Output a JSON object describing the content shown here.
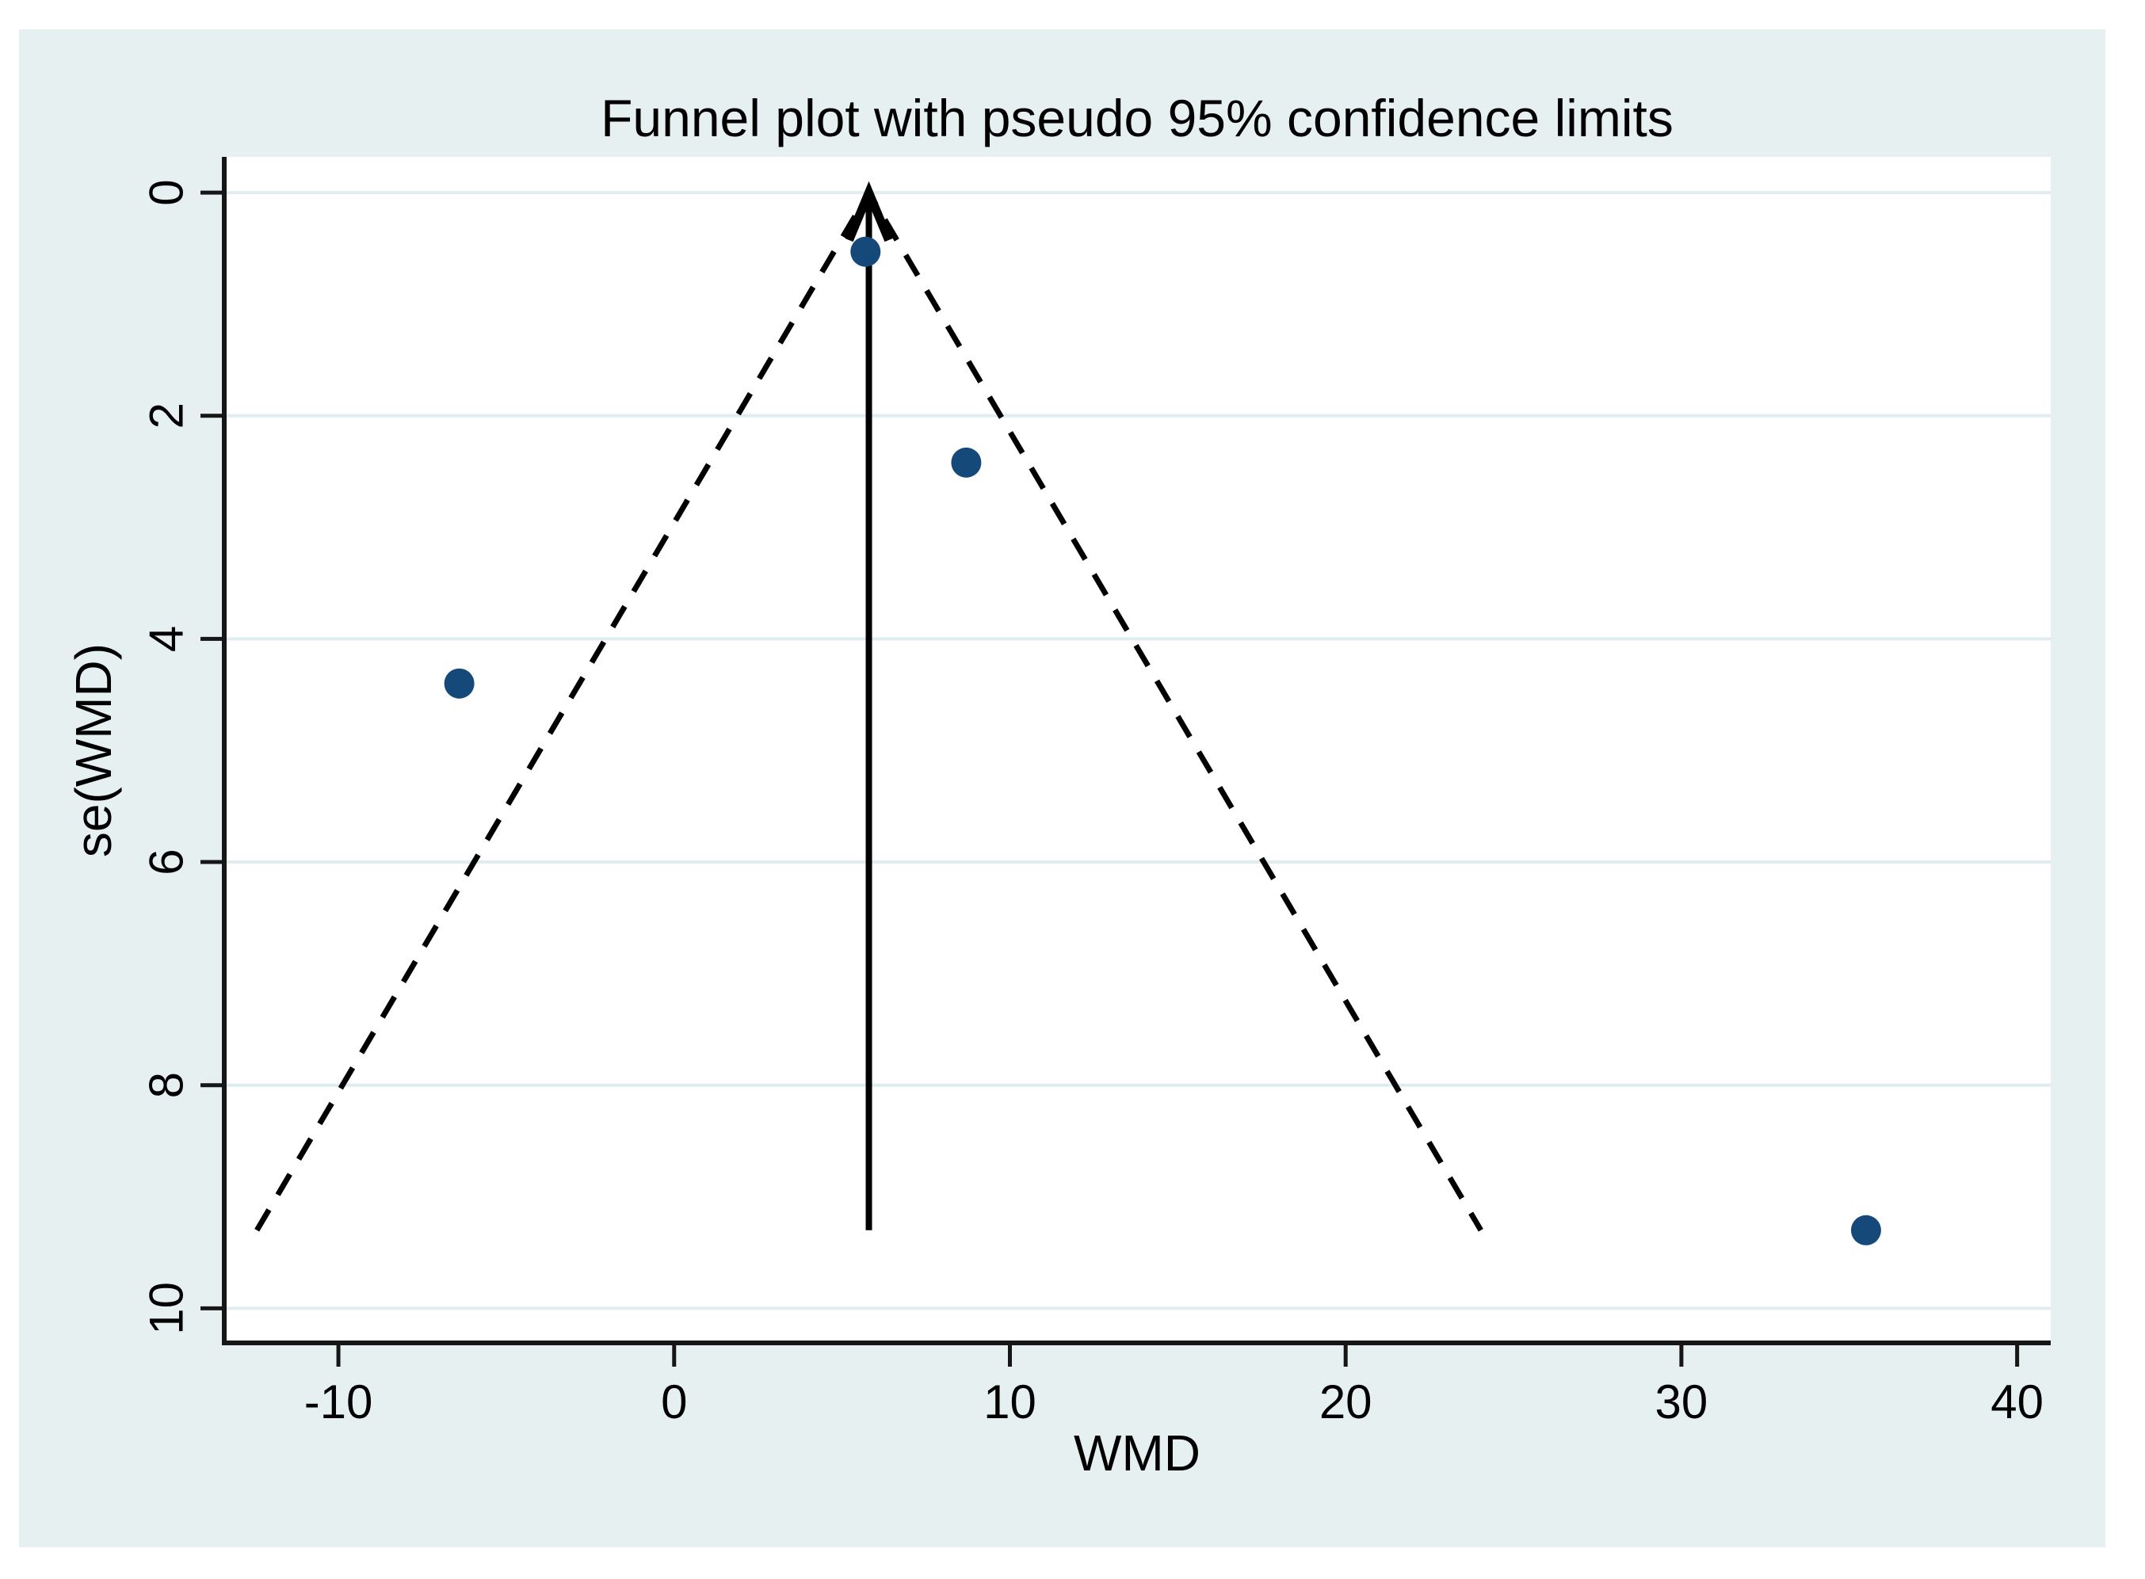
{
  "chart_data": {
    "type": "scatter",
    "title": "Funnel plot with pseudo 95% confidence limits",
    "xlabel": "WMD",
    "ylabel": "se(WMD)",
    "x_ticks": [
      -10,
      0,
      10,
      20,
      30,
      40
    ],
    "y_ticks": [
      0,
      2,
      4,
      6,
      8,
      10
    ],
    "xlim": [
      -13.4,
      41.0
    ],
    "ylim": [
      -0.32,
      10.31
    ],
    "y_axis_inverted": true,
    "grid": "horizontal-only",
    "legend": "none",
    "points": [
      {
        "wmd": 5.7,
        "se": 0.53
      },
      {
        "wmd": 8.7,
        "se": 2.42
      },
      {
        "wmd": -6.4,
        "se": 4.4
      },
      {
        "wmd": 35.5,
        "se": 9.3
      }
    ],
    "pooled_line": {
      "wmd": 5.8,
      "se_from": 9.3,
      "se_to": 0,
      "arrow": "up",
      "style": "solid"
    },
    "funnel_limits": {
      "center_wmd": 5.8,
      "z": 1.96,
      "se_max": 9.3,
      "style": "dashed"
    },
    "colors": {
      "figure_background": "#e6f0f1",
      "plot_background": "#ffffff",
      "gridline": "#e0edf0",
      "axis": "#161616",
      "marker": "#15497a",
      "funnel_line": "#000000"
    }
  }
}
